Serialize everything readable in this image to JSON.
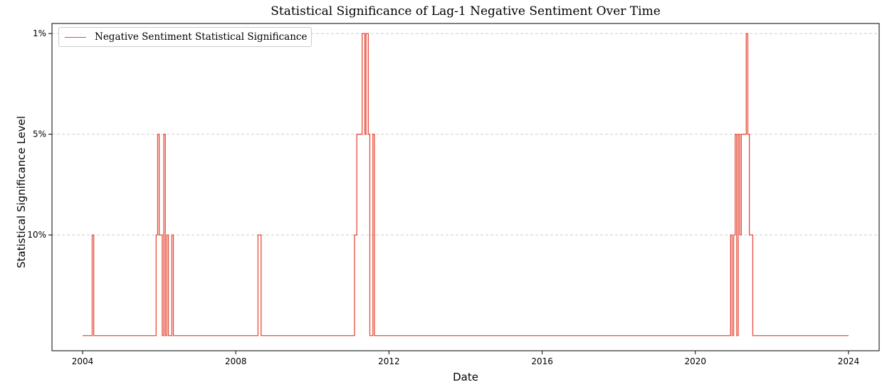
{
  "chart_data": {
    "type": "line",
    "title": "Statistical Significance of Lag-1 Negative Sentiment Over Time",
    "xlabel": "Date",
    "ylabel": "Statistical Significance Level",
    "x_ticks": [
      {
        "value": 2004,
        "label": "2004"
      },
      {
        "value": 2008,
        "label": "2008"
      },
      {
        "value": 2012,
        "label": "2012"
      },
      {
        "value": 2016,
        "label": "2016"
      },
      {
        "value": 2020,
        "label": "2020"
      },
      {
        "value": 2024,
        "label": "2024"
      }
    ],
    "y_ticks": [
      {
        "value": 1,
        "label": "10%"
      },
      {
        "value": 2,
        "label": "5%"
      },
      {
        "value": 3,
        "label": "1%"
      }
    ],
    "xlim": [
      2003.2,
      2024.8
    ],
    "ylim": [
      -0.15,
      3.1
    ],
    "grid": "horizontal dashed",
    "legend_position": "top-left",
    "color": "#e74c3c",
    "series": [
      {
        "name": "Negative Sentiment Statistical Significance",
        "drawstyle": "steps-post",
        "x": [
          2004.0,
          2004.25,
          2004.29,
          2005.92,
          2005.96,
          2006.0,
          2006.08,
          2006.12,
          2006.16,
          2006.2,
          2006.24,
          2006.33,
          2006.37,
          2008.58,
          2008.62,
          2008.66,
          2011.1,
          2011.16,
          2011.2,
          2011.25,
          2011.3,
          2011.37,
          2011.4,
          2011.46,
          2011.5,
          2011.58,
          2011.62,
          2011.66,
          2020.92,
          2020.96,
          2021.0,
          2021.04,
          2021.08,
          2021.12,
          2021.16,
          2021.2,
          2021.25,
          2021.33,
          2021.37,
          2021.41,
          2021.45,
          2021.5,
          2024.0
        ],
        "y": [
          0,
          1,
          0,
          1,
          2,
          1,
          0,
          2,
          0,
          1,
          0,
          1,
          0,
          1,
          1,
          0,
          1,
          2,
          2,
          2,
          3,
          2,
          3,
          2,
          0,
          2,
          0,
          0,
          1,
          0,
          1,
          2,
          0,
          2,
          1,
          2,
          2,
          3,
          2,
          1,
          1,
          0,
          0
        ]
      }
    ]
  }
}
